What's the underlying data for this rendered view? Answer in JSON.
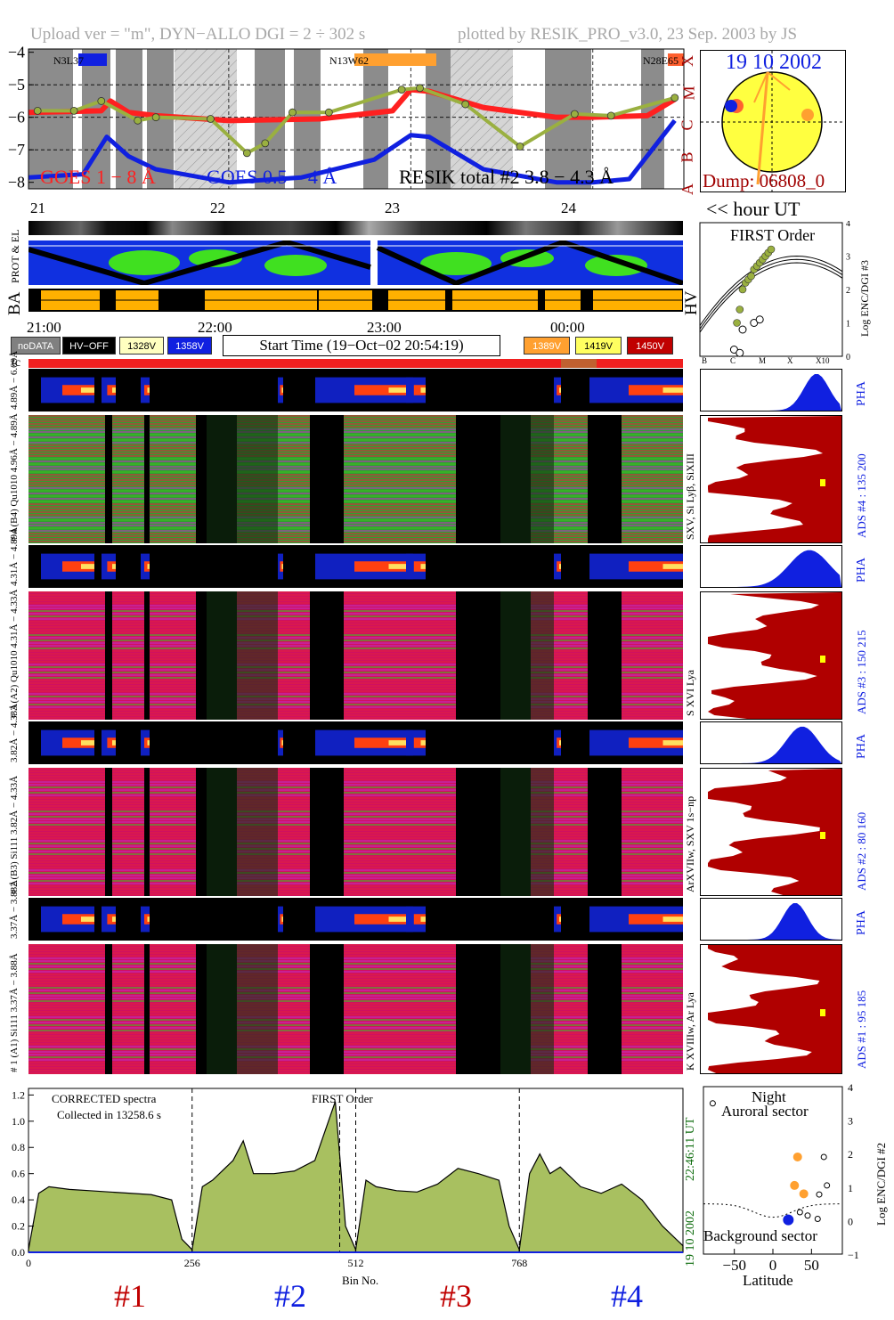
{
  "header": {
    "upload": "Upload ver = \"m\", DYN−ALLO DGI =   2 ÷ 302 s",
    "plotted": "plotted by RESIK_PRO_v3.0, 23 Sep. 2003 by JS"
  },
  "flux_panel": {
    "yticks": [
      "−4",
      "−5",
      "−6",
      "−7",
      "−8"
    ],
    "class_letters": [
      "X",
      "M",
      "C",
      "B",
      "A"
    ],
    "active_regions": [
      "N3L37",
      "N13W62",
      "N28E65"
    ],
    "goes_long_label": "GOES 1 − 8 Å",
    "goes_short_label": "GOES 0.5 − 4 Å",
    "resik_label": "RESIK total #2  3.8 − 4.3 Å",
    "colors": {
      "goes_long": "#ff2020",
      "goes_short": "#1020e0",
      "resik": "#9ab040"
    }
  },
  "sun_panel": {
    "date": "19 10 2002",
    "dump": "Dump: 06808_0"
  },
  "hours_row": {
    "labels": [
      "21",
      "22",
      "23",
      "24"
    ],
    "unit_label": "<< hour UT"
  },
  "orbit_labels": {
    "el": "PROT & EL",
    "ba": "BA",
    "hv": "HV"
  },
  "time_row": {
    "labels": [
      "21:00",
      "22:00",
      "23:00",
      "00:00"
    ]
  },
  "legend": {
    "items": [
      {
        "label": "noDATA",
        "bg": "#808080",
        "fg": "#ffffff"
      },
      {
        "label": "HV−OFF",
        "bg": "#000000",
        "fg": "#ffffff"
      },
      {
        "label": "1328V",
        "bg": "#ffffc0",
        "fg": "#000000"
      },
      {
        "label": "1358V",
        "bg": "#1020e0",
        "fg": "#ffffff"
      },
      {
        "label": "1389V",
        "bg": "#ffa030",
        "fg": "#ffffff"
      },
      {
        "label": "1419V",
        "bg": "#ffff60",
        "fg": "#000000"
      },
      {
        "label": "1450V",
        "bg": "#c00000",
        "fg": "#ffffff"
      }
    ],
    "start_time": "Start Time (19−Oct−02 20:54:19)",
    "tc": "tc"
  },
  "spectrogram_labels": {
    "pha4": "4.89Å − 6.09Å",
    "det4": "# 4 (B4) Qu1010 4.96Å − 4.89Å",
    "pha3": "4.31Å − 4.89Å",
    "det3": "# 3 (A2) Qu1010 4.31Å − 4.33Å",
    "pha2": "3.82Å − 4.33Å",
    "det2": "# 2 (B3) Si111 3.82Å − 4.33Å",
    "pha1": "3.37Å − 3.88Å",
    "det1": "# 1 (A1) Si111 3.37Å − 3.88Å"
  },
  "first_order": {
    "title": "FIRST Order",
    "ylabel": "Log ENC/DGI #3",
    "yticks": [
      "4",
      "3",
      "2",
      "1",
      "0"
    ],
    "xticks": [
      "B",
      "C",
      "M",
      "X",
      "X10"
    ]
  },
  "side_panels": [
    {
      "kind": "PHA",
      "label": "PHA"
    },
    {
      "kind": "ADS",
      "label": "ADS #4 :   135 200",
      "lines": "SXV, Si Lyβ, SiXIII"
    },
    {
      "kind": "PHA",
      "label": "PHA"
    },
    {
      "kind": "ADS",
      "label": "ADS #3 :   150 215",
      "lines": "S XVI Lya"
    },
    {
      "kind": "PHA",
      "label": "PHA"
    },
    {
      "kind": "ADS",
      "label": "ADS #2 :   80 160",
      "lines": "ArXVIIw, SXV 1s−np"
    },
    {
      "kind": "PHA",
      "label": "PHA"
    },
    {
      "kind": "ADS",
      "label": "ADS #1 :   95 185",
      "lines": "K XVIIIw, Ar Lya"
    }
  ],
  "bottom_spectrum": {
    "yticks": [
      "1.2",
      "1.0",
      "0.8",
      "0.6",
      "0.4",
      "0.2",
      "0.0"
    ],
    "xticks": [
      "0",
      "256",
      "512",
      "768"
    ],
    "xlabel": "Bin No.",
    "note1": "CORRECTED spectra",
    "note2": "Collected in 13258.6 s",
    "first_order": "FIRST Order",
    "datetime_date": "19 10 2002",
    "datetime_time": "22:46:11 UT",
    "detectors": [
      {
        "label": "#1",
        "color": "#c00000"
      },
      {
        "label": "#2",
        "color": "#1020e0"
      },
      {
        "label": "#3",
        "color": "#c00000"
      },
      {
        "label": "#4",
        "color": "#1020e0"
      }
    ]
  },
  "latitude_panel": {
    "night": "Night",
    "auroral": "Auroral sector",
    "background": "Background sector",
    "xticks": [
      "−50",
      "0",
      "50"
    ],
    "xlabel": "Latitude",
    "yticks": [
      "4",
      "3",
      "2",
      "1",
      "0",
      "−1"
    ],
    "ylabel": "Log ENC/DGI #2",
    "orange_points": [
      {
        "lat": 32,
        "logc": 1.9
      },
      {
        "lat": 28,
        "logc": 1.05
      },
      {
        "lat": 40,
        "logc": 0.8
      }
    ],
    "open_points": [
      {
        "lat": 66,
        "logc": 1.9
      },
      {
        "lat": 70,
        "logc": 1.05
      },
      {
        "lat": 60,
        "logc": 0.78
      },
      {
        "lat": 45,
        "logc": 0.15
      },
      {
        "lat": 58,
        "logc": 0.05
      },
      {
        "lat": 35,
        "logc": 0.25
      },
      {
        "lat": -78,
        "logc": 3.5
      }
    ],
    "blue_points": [
      {
        "lat": 20,
        "logc": 0.02
      }
    ]
  },
  "chart_data": [
    {
      "type": "line",
      "title": "",
      "ylabel": "log flux",
      "ylim": [
        -8.2,
        -3.9
      ],
      "xlim": [
        20.9,
        24.5
      ],
      "series": [
        {
          "name": "GOES 1 − 8 Å",
          "x": [
            20.9,
            21.3,
            21.35,
            21.45,
            21.6,
            22.0,
            22.5,
            22.9,
            23.0,
            23.1,
            23.4,
            23.8,
            24.0,
            24.3,
            24.45
          ],
          "y": [
            -5.85,
            -5.8,
            -5.5,
            -5.85,
            -5.95,
            -6.1,
            -6.05,
            -5.8,
            -5.15,
            -5.2,
            -5.7,
            -6.0,
            -6.0,
            -5.95,
            -5.45
          ]
        },
        {
          "name": "GOES 0.5 − 4 Å",
          "x": [
            20.9,
            21.2,
            21.33,
            21.45,
            21.6,
            22.0,
            22.4,
            22.8,
            23.0,
            23.1,
            23.4,
            23.8,
            24.0,
            24.2,
            24.45
          ],
          "y": [
            -7.85,
            -7.75,
            -6.6,
            -7.2,
            -7.6,
            -8.0,
            -7.85,
            -7.3,
            -6.55,
            -6.6,
            -7.6,
            -8.0,
            -8.0,
            -7.9,
            -6.1
          ]
        },
        {
          "name": "RESIK total #2  3.8 − 4.3 Å",
          "x": [
            20.95,
            21.15,
            21.3,
            21.5,
            21.6,
            21.9,
            22.1,
            22.2,
            22.35,
            22.55,
            22.95,
            23.05,
            23.3,
            23.6,
            23.9,
            24.1,
            24.45
          ],
          "y": [
            -5.8,
            -5.8,
            -5.5,
            -6.1,
            -6.0,
            -6.05,
            -7.1,
            -6.8,
            -5.85,
            -5.85,
            -5.15,
            -5.1,
            -5.6,
            -6.9,
            -5.9,
            -5.95,
            -5.4
          ]
        }
      ]
    },
    {
      "type": "area",
      "title": "",
      "xlabel": "Bin No.",
      "ylim": [
        0,
        1.25
      ],
      "xlim": [
        0,
        1024
      ],
      "series": [
        {
          "name": "#1",
          "x": [
            0,
            16,
            32,
            64,
            96,
            128,
            160,
            192,
            224,
            240,
            256
          ],
          "y": [
            0.02,
            0.45,
            0.5,
            0.48,
            0.47,
            0.46,
            0.45,
            0.44,
            0.4,
            0.1,
            0.02
          ]
        },
        {
          "name": "#2",
          "x": [
            256,
            272,
            288,
            320,
            336,
            352,
            384,
            416,
            448,
            480,
            496,
            512
          ],
          "y": [
            0.02,
            0.5,
            0.55,
            0.7,
            0.85,
            0.6,
            0.6,
            0.62,
            0.7,
            1.15,
            0.2,
            0.02
          ]
        },
        {
          "name": "#3",
          "x": [
            512,
            528,
            544,
            576,
            608,
            640,
            672,
            704,
            736,
            752,
            768
          ],
          "y": [
            0.02,
            0.55,
            0.5,
            0.47,
            0.46,
            0.52,
            0.64,
            0.6,
            0.55,
            0.2,
            0.02
          ]
        },
        {
          "name": "#4",
          "x": [
            768,
            784,
            800,
            816,
            832,
            864,
            896,
            928,
            960,
            992,
            1024
          ],
          "y": [
            0.02,
            0.6,
            0.75,
            0.6,
            0.65,
            0.5,
            0.45,
            0.52,
            0.4,
            0.2,
            0.05
          ]
        }
      ]
    },
    {
      "type": "scatter",
      "title": "FIRST Order",
      "ylabel": "Log ENC/DGI #3",
      "xlim": [
        0,
        5
      ],
      "ylim": [
        0,
        4
      ],
      "series": [
        {
          "name": "",
          "x": [
            1.3,
            1.4,
            1.5,
            1.6,
            1.7,
            1.8,
            1.9,
            2.0,
            2.1,
            2.2,
            2.3,
            2.4,
            2.5
          ],
          "y": [
            1.0,
            1.4,
            2.0,
            2.2,
            2.3,
            2.4,
            2.6,
            2.7,
            2.8,
            2.9,
            3.0,
            3.1,
            3.2
          ]
        }
      ]
    }
  ]
}
